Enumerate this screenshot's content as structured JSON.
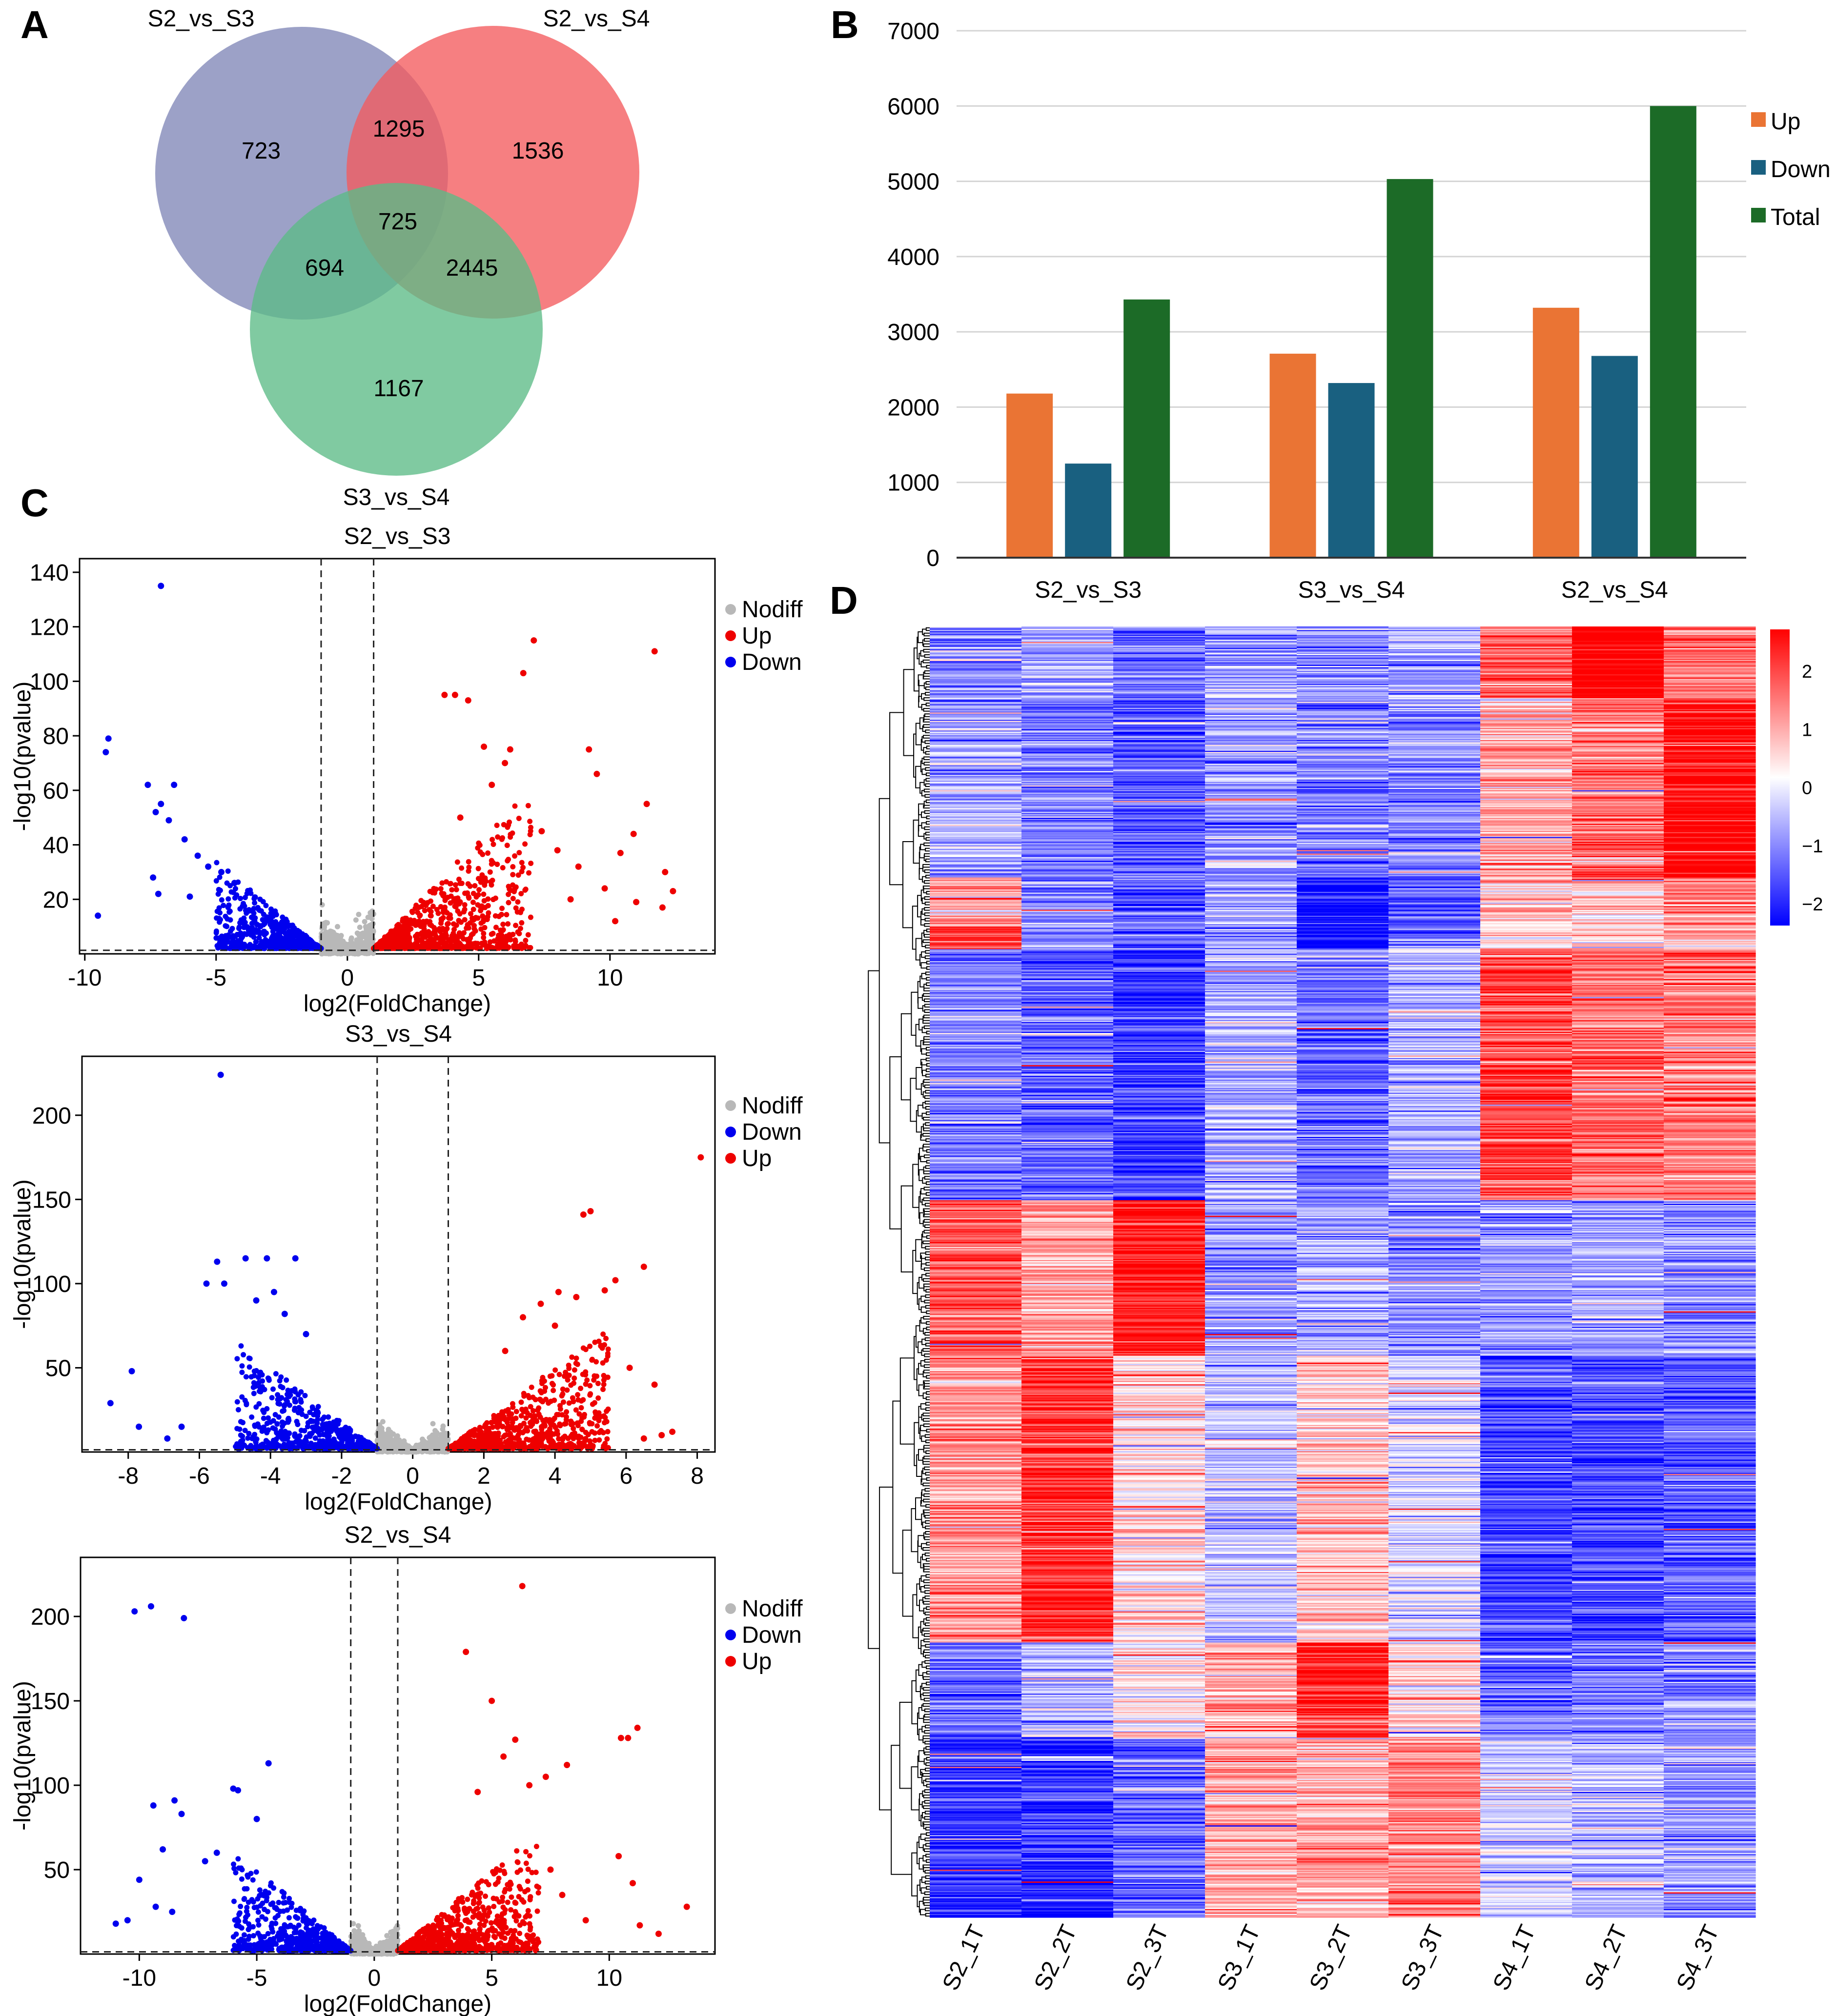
{
  "panels": {
    "A": {
      "label": "A",
      "sets": [
        {
          "name": "S2_vs_S3",
          "color": "#8087b7"
        },
        {
          "name": "S2_vs_S4",
          "color": "#f35b5e"
        },
        {
          "name": "S3_vs_S4",
          "color": "#5cbb86"
        }
      ],
      "regions": {
        "only_s2s3": "723",
        "only_s2s4": "1536",
        "only_s3s4": "1167",
        "s2s3_and_s2s4": "1295",
        "s2s3_and_s3s4": "694",
        "s2s4_and_s3s4": "2445",
        "all_three": "725"
      }
    },
    "B": {
      "label": "B"
    },
    "C": {
      "label": "C"
    },
    "D": {
      "label": "D"
    }
  },
  "chart_data": [
    {
      "id": "bar",
      "type": "bar",
      "title": "",
      "categories": [
        "S2_vs_S3",
        "S3_vs_S4",
        "S2_vs_S4"
      ],
      "series": [
        {
          "name": "Up",
          "color": "#ea7434",
          "values": [
            2180,
            2710,
            3320
          ]
        },
        {
          "name": "Down",
          "color": "#196080",
          "values": [
            1250,
            2320,
            2680
          ]
        },
        {
          "name": "Total",
          "color": "#1c6b27",
          "values": [
            3430,
            5030,
            6000
          ]
        }
      ],
      "ylim": [
        0,
        7000
      ],
      "yticks": [
        "0",
        "1000",
        "2000",
        "3000",
        "4000",
        "5000",
        "6000",
        "7000"
      ],
      "grid": true,
      "legend": "right"
    },
    {
      "id": "v1",
      "type": "scatter",
      "title": "S2_vs_S3",
      "xlabel": "log2(FoldChange)",
      "ylabel": "-log10(pvalue)",
      "xlim": [
        -10.2,
        14.0
      ],
      "ylim": [
        0,
        145
      ],
      "xticks": [
        -10,
        -5,
        0,
        5,
        10
      ],
      "yticks": [
        20,
        40,
        60,
        80,
        100,
        120,
        140
      ],
      "thresholds": {
        "fc": [
          -1,
          1
        ],
        "p": 1.3
      },
      "legend": [
        {
          "name": "Nodiff",
          "color": "#b8b8b8"
        },
        {
          "name": "Up",
          "color": "#ee0000"
        },
        {
          "name": "Down",
          "color": "#0000ee"
        }
      ],
      "bulk": {
        "up_xmax": 7.0,
        "up_slope": 10,
        "down_xmin": -5.0,
        "down_slope": 8
      },
      "highlights": {
        "down": [
          [
            -7.1,
            135
          ],
          [
            -9.1,
            79
          ],
          [
            -9.2,
            74
          ],
          [
            -7.6,
            62
          ],
          [
            -6.6,
            62
          ],
          [
            -7.1,
            55
          ],
          [
            -7.3,
            52
          ],
          [
            -6.8,
            49
          ],
          [
            -9.5,
            14
          ],
          [
            -7.4,
            28
          ],
          [
            -7.2,
            22
          ],
          [
            -6.2,
            42
          ],
          [
            -5.7,
            36
          ],
          [
            -5.3,
            32
          ],
          [
            -4.8,
            30
          ],
          [
            -4.3,
            26
          ],
          [
            -6.0,
            21
          ]
        ],
        "up": [
          [
            11.7,
            111
          ],
          [
            7.1,
            115
          ],
          [
            6.7,
            103
          ],
          [
            3.7,
            95
          ],
          [
            4.1,
            95
          ],
          [
            4.6,
            93
          ],
          [
            5.2,
            76
          ],
          [
            6.2,
            75
          ],
          [
            6.0,
            70
          ],
          [
            9.2,
            75
          ],
          [
            9.5,
            66
          ],
          [
            11.4,
            55
          ],
          [
            10.9,
            44
          ],
          [
            10.4,
            37
          ],
          [
            12.1,
            30
          ],
          [
            12.4,
            23
          ],
          [
            12.0,
            17
          ],
          [
            11.0,
            19
          ],
          [
            8.8,
            32
          ],
          [
            8.0,
            38
          ],
          [
            9.8,
            24
          ],
          [
            7.4,
            45
          ],
          [
            8.5,
            20
          ],
          [
            10.2,
            12
          ],
          [
            5.5,
            62
          ],
          [
            4.3,
            50
          ]
        ]
      }
    },
    {
      "id": "v2",
      "type": "scatter",
      "title": "S3_vs_S4",
      "xlabel": "log2(FoldChange)",
      "ylabel": "-log10(pvalue)",
      "xlim": [
        -9.3,
        8.5
      ],
      "ylim": [
        0,
        235
      ],
      "xticks": [
        -8,
        -6,
        -4,
        -2,
        0,
        2,
        4,
        6,
        8
      ],
      "yticks": [
        50,
        100,
        150,
        200
      ],
      "thresholds": {
        "fc": [
          -1,
          1
        ],
        "p": 1.3
      },
      "legend": [
        {
          "name": "Nodiff",
          "color": "#b8b8b8"
        },
        {
          "name": "Down",
          "color": "#0000ee"
        },
        {
          "name": "Up",
          "color": "#ee0000"
        }
      ],
      "bulk": {
        "up_xmax": 5.5,
        "up_slope": 16,
        "down_xmin": -5.0,
        "down_slope": 16
      },
      "highlights": {
        "down": [
          [
            -5.4,
            224
          ],
          [
            -5.5,
            113
          ],
          [
            -4.7,
            115
          ],
          [
            -4.1,
            115
          ],
          [
            -3.3,
            115
          ],
          [
            -5.3,
            100
          ],
          [
            -5.8,
            100
          ],
          [
            -3.9,
            95
          ],
          [
            -7.9,
            48
          ],
          [
            -8.5,
            29
          ],
          [
            -7.7,
            15
          ],
          [
            -6.5,
            15
          ],
          [
            -6.9,
            8
          ],
          [
            -4.4,
            90
          ],
          [
            -3.6,
            82
          ],
          [
            -3.0,
            70
          ]
        ],
        "up": [
          [
            8.1,
            175
          ],
          [
            5.0,
            143
          ],
          [
            4.8,
            141
          ],
          [
            6.5,
            110
          ],
          [
            5.7,
            102
          ],
          [
            5.4,
            96
          ],
          [
            4.1,
            95
          ],
          [
            4.6,
            92
          ],
          [
            3.6,
            88
          ],
          [
            3.1,
            80
          ],
          [
            4.0,
            75
          ],
          [
            6.8,
            40
          ],
          [
            6.1,
            50
          ],
          [
            5.3,
            63
          ],
          [
            7.3,
            12
          ],
          [
            7.0,
            10
          ],
          [
            6.5,
            8
          ],
          [
            2.6,
            60
          ]
        ]
      }
    },
    {
      "id": "v3",
      "type": "scatter",
      "title": "S2_vs_S4",
      "xlabel": "log2(FoldChange)",
      "ylabel": "-log10(pvalue)",
      "xlim": [
        -12.5,
        14.5
      ],
      "ylim": [
        0,
        235
      ],
      "xticks": [
        -10,
        -5,
        0,
        5,
        10
      ],
      "yticks": [
        50,
        100,
        150,
        200
      ],
      "thresholds": {
        "fc": [
          -1,
          1
        ],
        "p": 1.3
      },
      "legend": [
        {
          "name": "Nodiff",
          "color": "#b8b8b8"
        },
        {
          "name": "Down",
          "color": "#0000ee"
        },
        {
          "name": "Up",
          "color": "#ee0000"
        }
      ],
      "bulk": {
        "up_xmax": 7.0,
        "up_slope": 12,
        "down_xmin": -6.0,
        "down_slope": 12
      },
      "highlights": {
        "down": [
          [
            -10.2,
            203
          ],
          [
            -9.5,
            206
          ],
          [
            -8.1,
            199
          ],
          [
            -4.5,
            113
          ],
          [
            -5.8,
            97
          ],
          [
            -6.0,
            98
          ],
          [
            -9.4,
            88
          ],
          [
            -8.5,
            91
          ],
          [
            -8.2,
            83
          ],
          [
            -9.0,
            62
          ],
          [
            -10.0,
            44
          ],
          [
            -11.0,
            18
          ],
          [
            -10.5,
            20
          ],
          [
            -9.3,
            28
          ],
          [
            -8.6,
            25
          ],
          [
            -7.2,
            55
          ],
          [
            -6.7,
            60
          ],
          [
            -5.0,
            80
          ]
        ],
        "up": [
          [
            6.3,
            218
          ],
          [
            3.9,
            179
          ],
          [
            5.0,
            150
          ],
          [
            11.2,
            134
          ],
          [
            10.8,
            128
          ],
          [
            10.5,
            128
          ],
          [
            6.0,
            127
          ],
          [
            5.5,
            117
          ],
          [
            8.2,
            112
          ],
          [
            7.3,
            105
          ],
          [
            6.6,
            100
          ],
          [
            4.4,
            96
          ],
          [
            10.4,
            58
          ],
          [
            11.0,
            42
          ],
          [
            11.3,
            17
          ],
          [
            13.3,
            28
          ],
          [
            12.1,
            12
          ],
          [
            9.0,
            20
          ],
          [
            8.0,
            35
          ],
          [
            7.5,
            50
          ]
        ]
      }
    },
    {
      "id": "heatmap",
      "type": "heatmap",
      "columns": [
        "S2_1T",
        "S2_2T",
        "S2_3T",
        "S3_1T",
        "S3_2T",
        "S3_3T",
        "S4_1T",
        "S4_2T",
        "S4_3T"
      ],
      "blocks": [
        {
          "rows": 60,
          "values": [
            -0.9,
            -0.8,
            -1.1,
            -0.7,
            -0.8,
            -0.8,
            1.2,
            2.2,
            1.0
          ]
        },
        {
          "rows": 150,
          "values": [
            -0.6,
            -1.0,
            -1.3,
            -0.7,
            -0.9,
            -0.9,
            0.6,
            1.1,
            2.0
          ]
        },
        {
          "rows": 40,
          "values": [
            0.8,
            -1.0,
            -1.2,
            -0.8,
            -1.8,
            -1.4,
            0.5,
            0.4,
            1.0
          ]
        },
        {
          "rows": 20,
          "values": [
            1.6,
            -0.8,
            -1.0,
            -0.7,
            -1.9,
            -1.2,
            0.3,
            0.2,
            0.6
          ]
        },
        {
          "rows": 210,
          "values": [
            -1.0,
            -1.2,
            -1.5,
            -0.6,
            -1.1,
            -0.6,
            1.5,
            1.2,
            1.0
          ]
        },
        {
          "rows": 130,
          "values": [
            1.3,
            0.8,
            1.8,
            -0.8,
            -0.7,
            -0.9,
            -0.8,
            -0.7,
            -0.9
          ]
        },
        {
          "rows": 240,
          "values": [
            0.8,
            1.6,
            0.3,
            -0.5,
            0.4,
            -0.3,
            -1.5,
            -1.4,
            -1.3
          ]
        },
        {
          "rows": 80,
          "values": [
            -1.1,
            -0.6,
            0.2,
            0.7,
            1.7,
            0.3,
            -1.2,
            -1.0,
            -0.9
          ]
        },
        {
          "rows": 150,
          "values": [
            -1.6,
            -1.6,
            -1.2,
            0.6,
            0.7,
            1.0,
            -0.4,
            -0.6,
            -0.8
          ]
        }
      ],
      "colorbar": {
        "min": -2,
        "max": 2,
        "ticks": [
          "2",
          "1",
          "0",
          "−1",
          "−2"
        ],
        "low": "#0000ff",
        "mid": "#ffffff",
        "high": "#ff0000"
      }
    }
  ]
}
